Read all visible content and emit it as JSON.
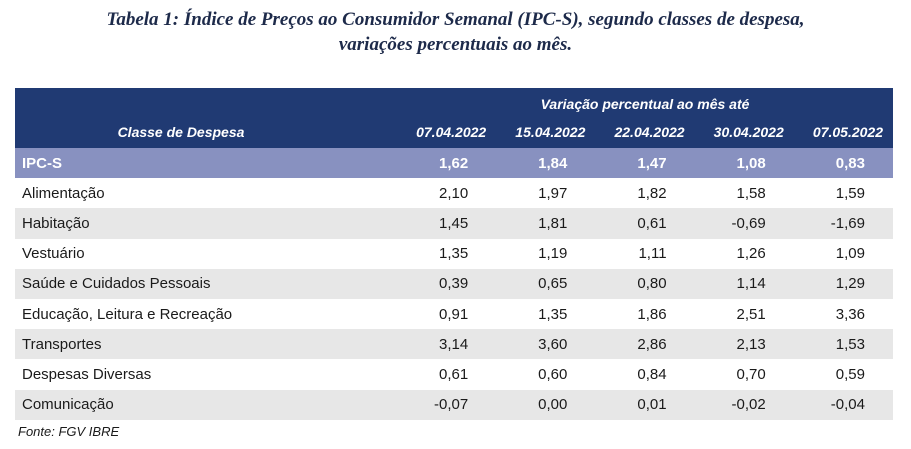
{
  "caption": {
    "label": "Tabela 1",
    "line1": ": Índice de Preços ao Consumidor Semanal (IPC-S), segundo classes de despesa,",
    "line2": "variações percentuais ao mês."
  },
  "table": {
    "group_header": "Variação percentual ao mês até",
    "class_header": "Classe de Despesa",
    "dates": [
      "07.04.2022",
      "15.04.2022",
      "22.04.2022",
      "30.04.2022",
      "07.05.2022"
    ],
    "rows": [
      {
        "name": "IPC-S",
        "values": [
          "1,62",
          "1,84",
          "1,47",
          "1,08",
          "0,83"
        ]
      },
      {
        "name": "Alimentação",
        "values": [
          "2,10",
          "1,97",
          "1,82",
          "1,58",
          "1,59"
        ]
      },
      {
        "name": "Habitação",
        "values": [
          "1,45",
          "1,81",
          "0,61",
          "-0,69",
          "-1,69"
        ]
      },
      {
        "name": "Vestuário",
        "values": [
          "1,35",
          "1,19",
          "1,11",
          "1,26",
          "1,09"
        ]
      },
      {
        "name": "Saúde e Cuidados Pessoais",
        "values": [
          "0,39",
          "0,65",
          "0,80",
          "1,14",
          "1,29"
        ]
      },
      {
        "name": "Educação, Leitura e Recreação",
        "values": [
          "0,91",
          "1,35",
          "1,86",
          "2,51",
          "3,36"
        ]
      },
      {
        "name": "Transportes",
        "values": [
          "3,14",
          "3,60",
          "2,86",
          "2,13",
          "1,53"
        ]
      },
      {
        "name": "Despesas Diversas",
        "values": [
          "0,61",
          "0,60",
          "0,84",
          "0,70",
          "0,59"
        ]
      },
      {
        "name": "Comunicação",
        "values": [
          "-0,07",
          "0,00",
          "0,01",
          "-0,02",
          "-0,04"
        ]
      }
    ]
  },
  "source": "Fonte: FGV IBRE",
  "colors": {
    "header_bg": "#203a73",
    "highlight_row_bg": "#8891c0",
    "stripe_bg": "#e7e7e7"
  }
}
